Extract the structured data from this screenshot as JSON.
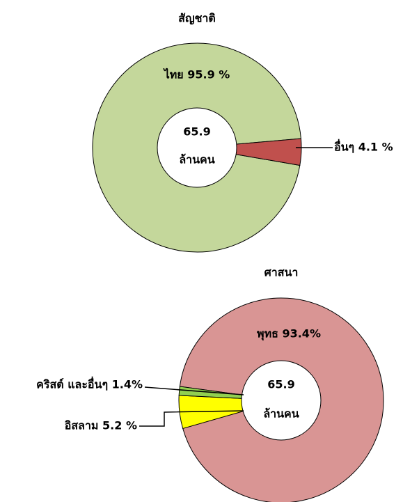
{
  "chart_data": [
    {
      "type": "donut",
      "title": "สัญชาติ",
      "total": 65.9,
      "total_unit": "ล้านคน",
      "categories": [
        "ไทย",
        "อื่นๆ"
      ],
      "values": [
        95.9,
        4.1
      ],
      "value_labels": [
        "ไทย 95.9 %",
        "อื่นๆ 4.1 %"
      ],
      "colors": [
        "#c4d79b",
        "#c0504d"
      ]
    },
    {
      "type": "donut",
      "title": "ศาสนา",
      "total": 65.9,
      "total_unit": "ล้านคน",
      "categories": [
        "พุทธ",
        "อิสลาม",
        "คริสต์ และอื่นๆ"
      ],
      "values": [
        93.4,
        5.2,
        1.4
      ],
      "value_labels": [
        "พุทธ 93.4%",
        "อิสลาม 5.2 %",
        "คริสต์ และอื่นๆ 1.4%"
      ],
      "colors": [
        "#d99594",
        "#ffff00",
        "#92d050"
      ]
    }
  ]
}
